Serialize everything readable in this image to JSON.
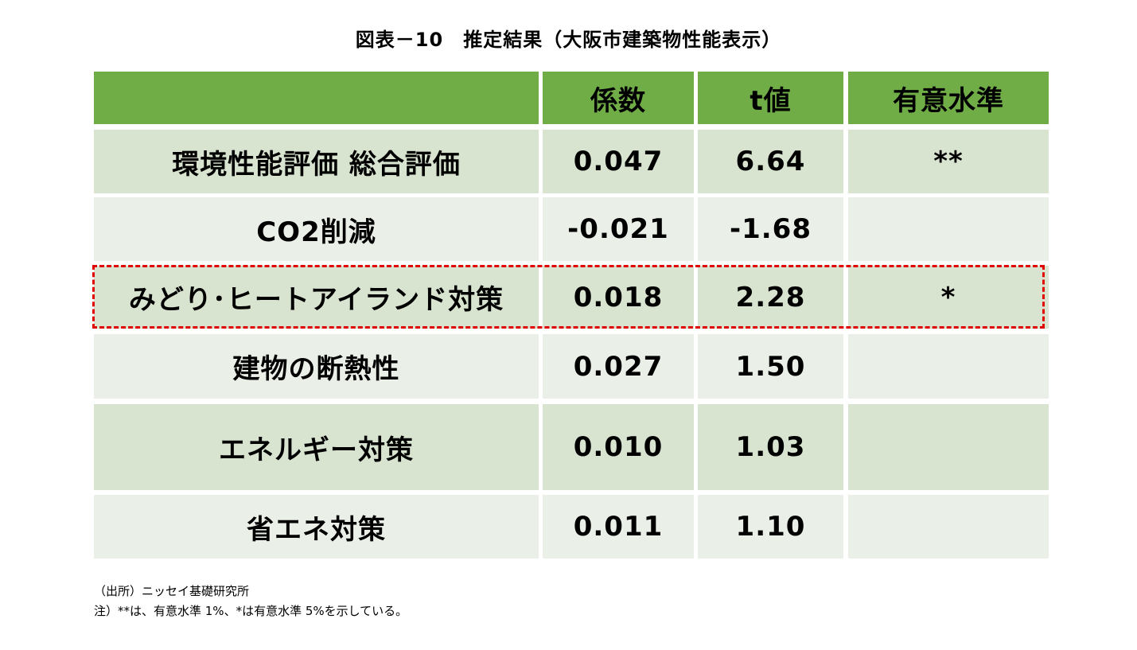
{
  "title": "図表－10　推定結果（大阪市建築物性能表示）",
  "table": {
    "header": [
      "係数",
      "t値",
      "有意水準"
    ],
    "rows": [
      [
        "環境性能評価 総合評価",
        "0.047",
        "6.64",
        "**"
      ],
      [
        "CO2削減",
        "-0.021",
        "-1.68"
      ],
      [
        "みどり･ヒートアイランド対策",
        "0.018",
        "2.28",
        "*"
      ],
      [
        "建物の断熱性",
        "0.027",
        "1.50"
      ],
      [
        "エネルギー対策",
        "0.010",
        "1.03"
      ],
      [
        "省エネ対策",
        "0.011",
        "1.10"
      ]
    ]
  },
  "notes": [
    "（出所）ニッセイ基礎研究所",
    "注）**は、有意水準 1%、*は有意水準 5%を示している。"
  ]
}
